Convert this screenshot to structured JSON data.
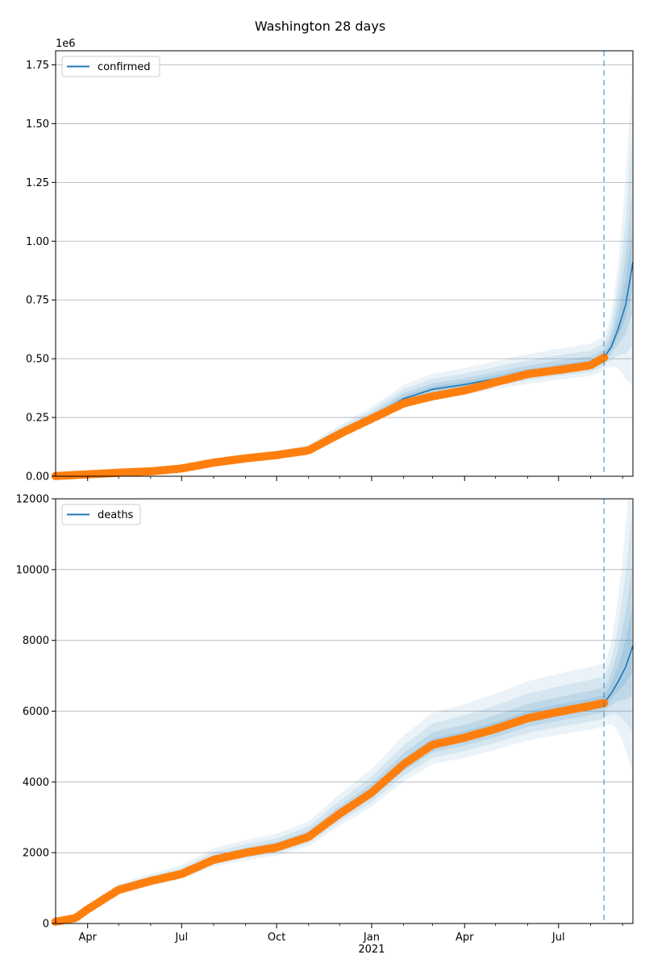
{
  "figure": {
    "title": "Washington 28 days"
  },
  "colors": {
    "model": "#1f77b4",
    "observed": "#ff7f0e",
    "band": "#1f77b4",
    "forecast_line": "#1f77b4",
    "grid": "#b0b0b0"
  },
  "x_axis": {
    "labels": [
      "Apr",
      "Jul",
      "Oct",
      "Jan",
      "Apr",
      "Jul"
    ],
    "year_label": "2021"
  },
  "chart_data": [
    {
      "type": "line",
      "panel": "top",
      "title": "Washington 28 days",
      "x_range": [
        "2020-03-01",
        "2021-09-11"
      ],
      "ylim": [
        0,
        1810000
      ],
      "y_ticks": [
        0,
        0.25,
        0.5,
        0.75,
        1.0,
        1.25,
        1.5,
        1.75
      ],
      "y_tick_labels": [
        "0.00",
        "0.25",
        "0.50",
        "0.75",
        "1.00",
        "1.25",
        "1.50",
        "1.75"
      ],
      "y_offset_label": "1e6",
      "grid": "horizontal",
      "legend": {
        "label": "confirmed",
        "placement": "top-left"
      },
      "forecast_start": "2021-08-14",
      "series": [
        {
          "name": "confirmed",
          "kind": "model",
          "points": [
            [
              "2020-03-01",
              2000
            ],
            [
              "2020-04-01",
              9000
            ],
            [
              "2020-05-01",
              16000
            ],
            [
              "2020-06-01",
              22000
            ],
            [
              "2020-07-01",
              35000
            ],
            [
              "2020-08-01",
              60000
            ],
            [
              "2020-09-01",
              78000
            ],
            [
              "2020-10-01",
              92000
            ],
            [
              "2020-11-01",
              115000
            ],
            [
              "2020-12-01",
              185000
            ],
            [
              "2021-01-01",
              250000
            ],
            [
              "2021-02-01",
              330000
            ],
            [
              "2021-03-01",
              370000
            ],
            [
              "2021-04-01",
              390000
            ],
            [
              "2021-05-01",
              415000
            ],
            [
              "2021-06-01",
              440000
            ],
            [
              "2021-07-01",
              460000
            ],
            [
              "2021-08-01",
              478000
            ],
            [
              "2021-08-14",
              505000
            ],
            [
              "2021-08-21",
              550000
            ],
            [
              "2021-08-28",
              630000
            ],
            [
              "2021-09-04",
              730000
            ],
            [
              "2021-09-11",
              910000
            ]
          ]
        },
        {
          "name": "",
          "kind": "observed",
          "points": [
            [
              "2020-03-01",
              1000
            ],
            [
              "2020-04-01",
              8000
            ],
            [
              "2020-05-01",
              15000
            ],
            [
              "2020-06-01",
              21000
            ],
            [
              "2020-07-01",
              33000
            ],
            [
              "2020-08-01",
              58000
            ],
            [
              "2020-09-01",
              76000
            ],
            [
              "2020-10-01",
              90000
            ],
            [
              "2020-11-01",
              110000
            ],
            [
              "2020-12-01",
              180000
            ],
            [
              "2021-01-01",
              245000
            ],
            [
              "2021-02-01",
              310000
            ],
            [
              "2021-03-01",
              340000
            ],
            [
              "2021-04-01",
              365000
            ],
            [
              "2021-05-01",
              400000
            ],
            [
              "2021-06-01",
              435000
            ],
            [
              "2021-07-01",
              452000
            ],
            [
              "2021-08-01",
              472000
            ],
            [
              "2021-08-14",
              505000
            ]
          ]
        }
      ]
    },
    {
      "type": "line",
      "panel": "bottom",
      "x_range": [
        "2020-03-01",
        "2021-09-11"
      ],
      "ylim": [
        0,
        12000
      ],
      "y_ticks": [
        0,
        2000,
        4000,
        6000,
        8000,
        10000,
        12000
      ],
      "y_tick_labels": [
        "0",
        "2000",
        "4000",
        "6000",
        "8000",
        "10000",
        "12000"
      ],
      "grid": "horizontal",
      "legend": {
        "label": "deaths",
        "placement": "top-left"
      },
      "forecast_start": "2021-08-14",
      "series": [
        {
          "name": "deaths",
          "kind": "model",
          "points": [
            [
              "2020-03-01",
              50
            ],
            [
              "2020-03-20",
              150
            ],
            [
              "2020-04-01",
              400
            ],
            [
              "2020-05-01",
              950
            ],
            [
              "2020-06-01",
              1200
            ],
            [
              "2020-07-01",
              1400
            ],
            [
              "2020-08-01",
              1800
            ],
            [
              "2020-09-01",
              2000
            ],
            [
              "2020-10-01",
              2150
            ],
            [
              "2020-11-01",
              2450
            ],
            [
              "2020-12-01",
              3100
            ],
            [
              "2021-01-01",
              3700
            ],
            [
              "2021-02-01",
              4500
            ],
            [
              "2021-03-01",
              5050
            ],
            [
              "2021-04-01",
              5250
            ],
            [
              "2021-05-01",
              5500
            ],
            [
              "2021-06-01",
              5800
            ],
            [
              "2021-07-01",
              5980
            ],
            [
              "2021-08-01",
              6150
            ],
            [
              "2021-08-14",
              6230
            ],
            [
              "2021-08-21",
              6500
            ],
            [
              "2021-08-28",
              6850
            ],
            [
              "2021-09-04",
              7250
            ],
            [
              "2021-09-11",
              7850
            ]
          ]
        },
        {
          "name": "",
          "kind": "observed",
          "points": [
            [
              "2020-03-01",
              50
            ],
            [
              "2020-03-20",
              150
            ],
            [
              "2020-04-01",
              400
            ],
            [
              "2020-05-01",
              950
            ],
            [
              "2020-06-01",
              1200
            ],
            [
              "2020-07-01",
              1400
            ],
            [
              "2020-08-01",
              1800
            ],
            [
              "2020-09-01",
              2000
            ],
            [
              "2020-10-01",
              2150
            ],
            [
              "2020-11-01",
              2450
            ],
            [
              "2020-12-01",
              3100
            ],
            [
              "2021-01-01",
              3700
            ],
            [
              "2021-02-01",
              4500
            ],
            [
              "2021-03-01",
              5050
            ],
            [
              "2021-04-01",
              5250
            ],
            [
              "2021-05-01",
              5500
            ],
            [
              "2021-06-01",
              5800
            ],
            [
              "2021-07-01",
              5980
            ],
            [
              "2021-08-01",
              6150
            ],
            [
              "2021-08-14",
              6230
            ]
          ]
        }
      ]
    }
  ]
}
